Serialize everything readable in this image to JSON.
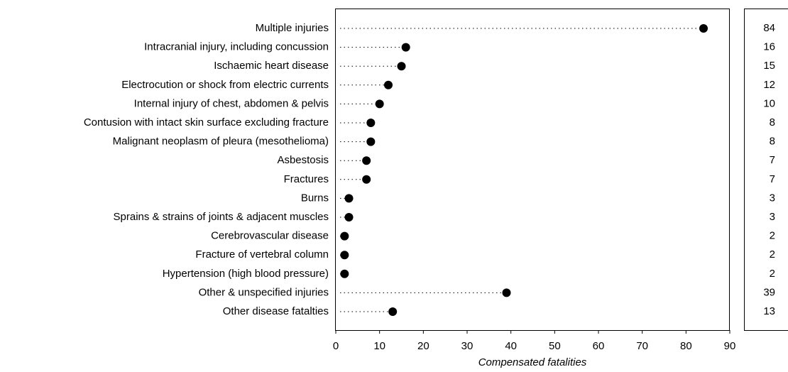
{
  "chart_data": {
    "type": "dot",
    "xlabel": "Compensated fatalities",
    "categories": [
      "Multiple injuries",
      "Intracranial injury, including concussion",
      "Ischaemic heart disease",
      "Electrocution or shock from electric currents",
      "Internal injury of chest, abdomen & pelvis",
      "Contusion with intact skin surface excluding fracture",
      "Malignant neoplasm of pleura (mesothelioma)",
      "Asbestosis",
      "Fractures",
      "Burns",
      "Sprains & strains of joints & adjacent muscles",
      "Cerebrovascular disease",
      "Fracture of vertebral column",
      "Hypertension (high blood pressure)",
      "Other & unspecified injuries",
      "Other disease fatalties"
    ],
    "values": [
      84,
      16,
      15,
      12,
      10,
      8,
      8,
      7,
      7,
      3,
      3,
      2,
      2,
      2,
      39,
      13
    ],
    "color": "#000000",
    "xlim": [
      0,
      90
    ],
    "xticks": [
      0,
      10,
      20,
      30,
      40,
      50,
      60,
      70,
      80,
      90
    ]
  }
}
